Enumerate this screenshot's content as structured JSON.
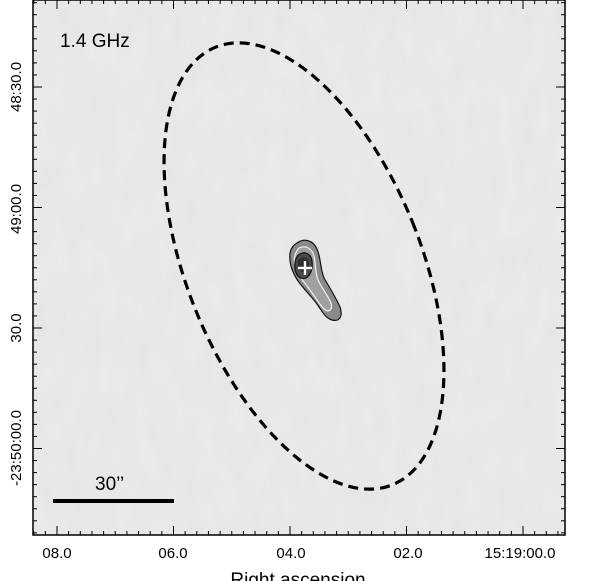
{
  "panel": {
    "frequency_label": "1.4 GHz",
    "scale_bar_label": "30’’",
    "xlabel": "Right ascension"
  },
  "axes": {
    "x_ticks": [
      "08.0",
      "06.0",
      "04.0",
      "02.0",
      "15:19:00.0"
    ],
    "y_ticks": [
      "48:30.0",
      "49:00.0",
      "30.0",
      "-23:50:00.0"
    ]
  },
  "colors": {
    "background": "#e6e6e6",
    "ellipse": "#000000",
    "source_fill": "#7a7a7a",
    "core": "#3a3a3a",
    "marker": "#ffffff"
  }
}
